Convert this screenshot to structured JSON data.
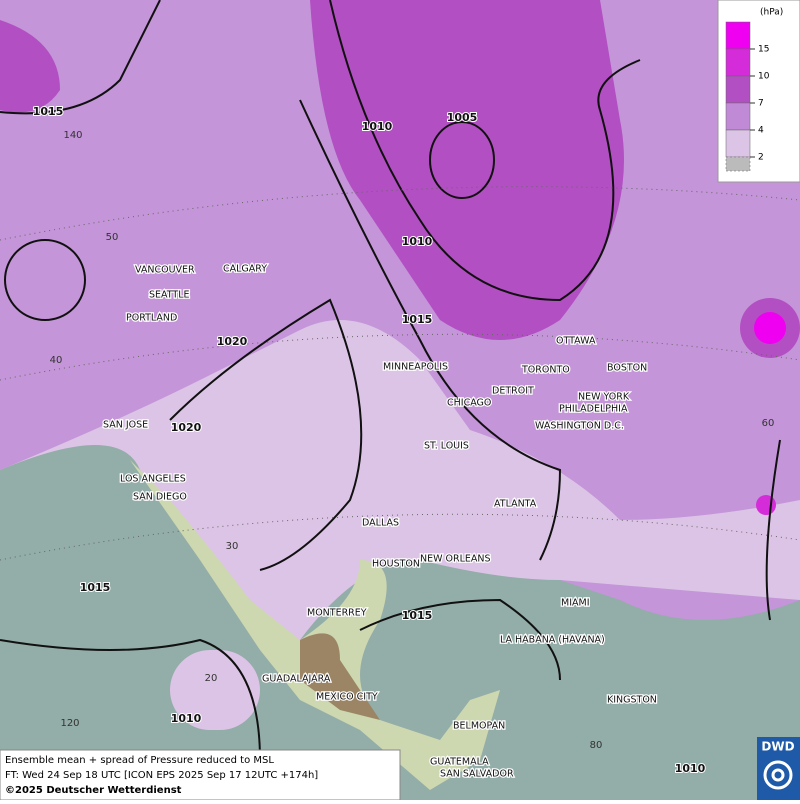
{
  "map": {
    "cities": [
      "VANCOUVER",
      "CALGARY",
      "SEATTLE",
      "PORTLAND",
      "SAN JOSE",
      "LOS ANGELES",
      "SAN DIEGO",
      "DALLAS",
      "HOUSTON",
      "NEW ORLEANS",
      "MONTERREY",
      "GUADALAJARA",
      "MEXICO CITY",
      "BELMOPAN",
      "GUATEMALA",
      "SAN SALVADOR",
      "MINNEAPOLIS",
      "CHICAGO",
      "ST. LOUIS",
      "DETROIT",
      "TORONTO",
      "OTTAWA",
      "BOSTON",
      "NEW YORK",
      "PHILADELPHIA",
      "WASHINGTON D.C.",
      "ATLANTA",
      "MIAMI",
      "LA HABANA (HAVANA)",
      "KINGSTON"
    ],
    "isobar_labels": [
      "1015",
      "1010",
      "1005",
      "1010",
      "1015",
      "1020",
      "1020",
      "1015",
      "1015",
      "1010",
      "1010"
    ],
    "grid_labels": [
      "140",
      "50",
      "40",
      "30",
      "20",
      "120",
      "80",
      "60"
    ]
  },
  "legend": {
    "unit": "(hPa)",
    "levels": [
      15,
      10,
      7,
      4,
      2
    ],
    "colors": [
      "#f000f0",
      "#d42cd8",
      "#b24fc2",
      "#c08ad6",
      "#dcc4e6"
    ]
  },
  "footer": {
    "lines": [
      "Ensemble mean + spread of Pressure reduced to MSL",
      "FT: Wed 24 Sep 18 UTC [ICON EPS 2025 Sep 17 12UTC +174h]",
      "©2025 Deutscher Wetterdienst"
    ]
  },
  "logo": "DWD"
}
